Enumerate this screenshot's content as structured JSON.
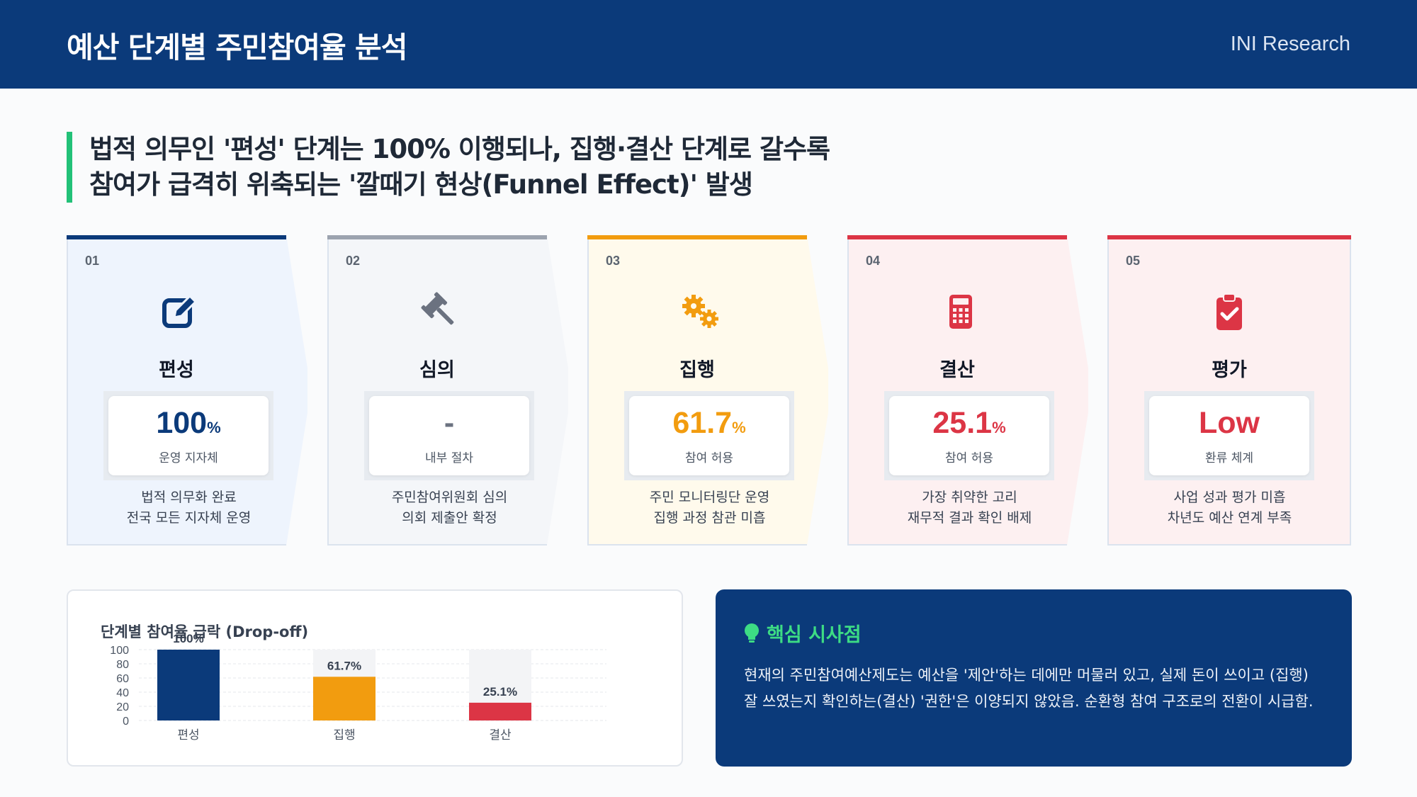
{
  "header": {
    "title": "예산 단계별 주민참여율 분석",
    "brand": "INI Research"
  },
  "headline": {
    "line1": "법적 의무인 '편성' 단계는 100% 이행되나, 집행·결산 단계로 갈수록",
    "line2": "참여가 급격히 위축되는 '깔때기 현상(Funnel Effect)' 발생"
  },
  "colors": {
    "navy": "#0b3a7a",
    "gray": "#9ca3af",
    "amber": "#f29c0f",
    "red": "#dc3545",
    "green": "#3ddc84"
  },
  "steps": [
    {
      "num": "01",
      "name": "편성",
      "value": "100",
      "unit": "%",
      "sub": "운영 지자체",
      "desc1": "법적 의무화 완료",
      "desc2": "전국 모든 지자체 운영",
      "icon": "edit-icon",
      "color": "#0b3a7a"
    },
    {
      "num": "02",
      "name": "심의",
      "value": "-",
      "unit": "",
      "sub": "내부 절차",
      "desc1": "주민참여위원회 심의",
      "desc2": "의회 제출안 확정",
      "icon": "gavel-icon",
      "color": "#9ca3af"
    },
    {
      "num": "03",
      "name": "집행",
      "value": "61.7",
      "unit": "%",
      "sub": "참여 허용",
      "desc1": "주민 모니터링단 운영",
      "desc2": "집행 과정 참관 미흡",
      "icon": "gears-icon",
      "color": "#f29c0f"
    },
    {
      "num": "04",
      "name": "결산",
      "value": "25.1",
      "unit": "%",
      "sub": "참여 허용",
      "desc1": "가장 취약한 고리",
      "desc2": "재무적 결과 확인 배제",
      "icon": "calculator-icon",
      "color": "#dc3545"
    },
    {
      "num": "05",
      "name": "평가",
      "value": "Low",
      "unit": "",
      "sub": "환류 체계",
      "desc1": "사업 성과 평가 미흡",
      "desc2": "차년도 예산 연계 부족",
      "icon": "clipboard-check-icon",
      "color": "#dc3545"
    }
  ],
  "chart_data": {
    "type": "bar",
    "title": "단계별 참여율 급락 (Drop-off)",
    "categories": [
      "편성",
      "집행",
      "결산"
    ],
    "values": [
      100,
      61.7,
      25.1
    ],
    "value_labels": [
      "100%",
      "61.7%",
      "25.1%"
    ],
    "colors": [
      "#0b3a7a",
      "#f29c0f",
      "#dc3545"
    ],
    "yticks": [
      "100",
      "80",
      "60",
      "40",
      "20",
      "0"
    ],
    "ylim": [
      0,
      100
    ],
    "grid": true
  },
  "insight": {
    "title": "핵심 시사점",
    "body": "현재의 주민참여예산제도는 예산을 '제안'하는 데에만 머물러 있고, 실제 돈이 쓰이고 (집행) 잘 쓰였는지 확인하는(결산) '권한'은 이양되지 않았음. 순환형 참여 구조로의 전환이 시급함."
  }
}
